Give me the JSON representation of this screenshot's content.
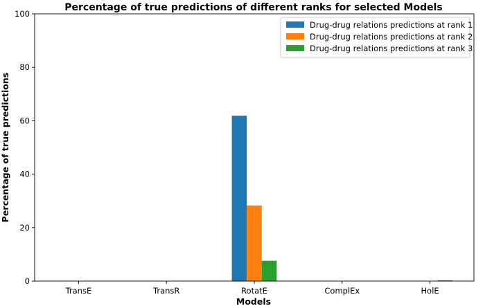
{
  "chart_data": {
    "type": "bar",
    "title": "Percentage of true predictions of different ranks for selected Models",
    "xlabel": "Models",
    "ylabel": "Percentage of true predictions",
    "categories": [
      "TransE",
      "TransR",
      "RotatE",
      "ComplEx",
      "HolE"
    ],
    "ylim": [
      0,
      100
    ],
    "yticks": [
      0,
      20,
      40,
      60,
      80,
      100
    ],
    "grid": false,
    "legend_position": "top-right",
    "series": [
      {
        "name": "Drug-drug relations predictions at rank 1",
        "color": "#1f77b4",
        "values": [
          0,
          0,
          61.9,
          0,
          0
        ]
      },
      {
        "name": "Drug-drug relations predictions at rank 2",
        "color": "#ff7f0e",
        "values": [
          0,
          0,
          28.3,
          0,
          0
        ]
      },
      {
        "name": "Drug-drug relations predictions at rank 3",
        "color": "#2ca02c",
        "values": [
          0,
          0,
          7.6,
          0,
          0.3
        ]
      }
    ]
  }
}
